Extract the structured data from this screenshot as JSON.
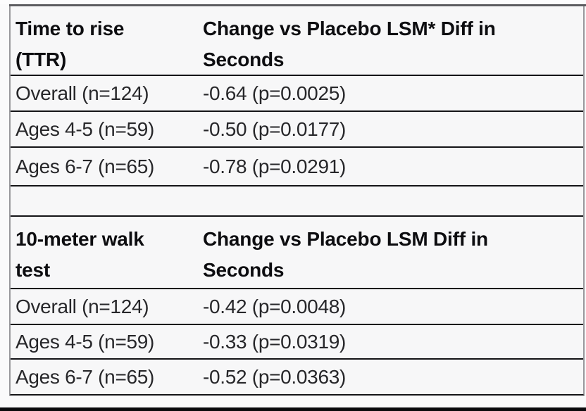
{
  "colors": {
    "page_background": "#fafafb",
    "table_background": "#f7f7f8",
    "top_rule": "#5c5c60",
    "row_line": "#141417",
    "side_border": "#98989c",
    "header_text": "#0d0d10",
    "body_text": "#27272a",
    "bottom_band": "#0a0a0c"
  },
  "tables": [
    {
      "header": {
        "metric": "Time to rise (TTR)",
        "comparison": "Change vs Placebo LSM* Diff in Seconds"
      },
      "rows": [
        {
          "group": "Overall (n=124)",
          "value": "-0.64 (p=0.0025)"
        },
        {
          "group": "Ages 4-5 (n=59)",
          "value": "-0.50 (p=0.0177)"
        },
        {
          "group": "Ages 6-7 (n=65)",
          "value": "-0.78 (p=0.0291)"
        }
      ]
    },
    {
      "header": {
        "metric": "10-meter walk test",
        "comparison": "Change vs Placebo LSM Diff in Seconds"
      },
      "rows": [
        {
          "group": "Overall (n=124)",
          "value": "-0.42 (p=0.0048)"
        },
        {
          "group": "Ages 4-5 (n=59)",
          "value": "-0.33 (p=0.0319)"
        },
        {
          "group": "Ages 6-7 (n=65)",
          "value": "-0.52 (p=0.0363)"
        }
      ]
    }
  ]
}
